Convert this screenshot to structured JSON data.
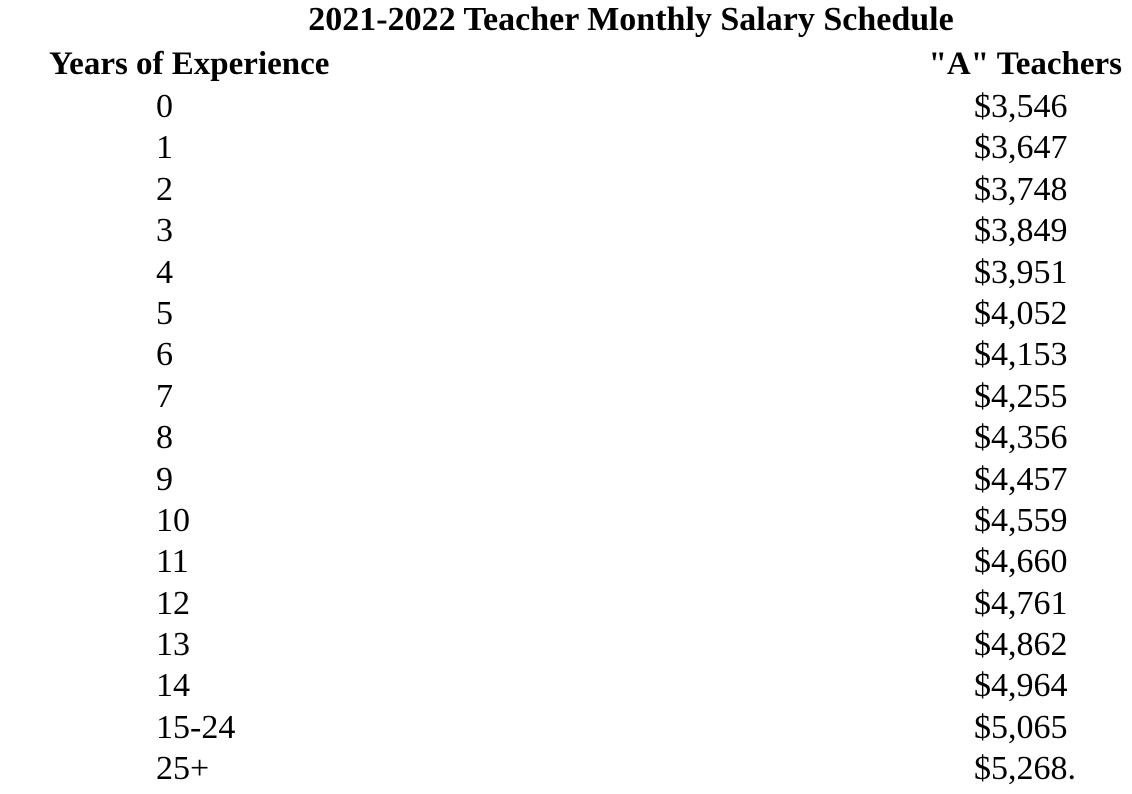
{
  "document": {
    "title": "2021-2022 Teacher Monthly Salary Schedule",
    "columns": {
      "years_header": "Years of Experience",
      "salary_header": "\"A\" Teachers"
    },
    "rows": [
      {
        "years": "0",
        "salary": "$3,546"
      },
      {
        "years": "1",
        "salary": "$3,647"
      },
      {
        "years": "2",
        "salary": "$3,748"
      },
      {
        "years": "3",
        "salary": "$3,849"
      },
      {
        "years": "4",
        "salary": "$3,951"
      },
      {
        "years": "5",
        "salary": "$4,052"
      },
      {
        "years": "6",
        "salary": "$4,153"
      },
      {
        "years": "7",
        "salary": "$4,255"
      },
      {
        "years": "8",
        "salary": "$4,356"
      },
      {
        "years": "9",
        "salary": "$4,457"
      },
      {
        "years": "10",
        "salary": "$4,559"
      },
      {
        "years": "11",
        "salary": "$4,660"
      },
      {
        "years": "12",
        "salary": "$4,761"
      },
      {
        "years": "13",
        "salary": "$4,862"
      },
      {
        "years": "14",
        "salary": "$4,964"
      },
      {
        "years": "15-24",
        "salary": "$5,065"
      },
      {
        "years": "25+",
        "salary": "$5,268."
      }
    ]
  }
}
